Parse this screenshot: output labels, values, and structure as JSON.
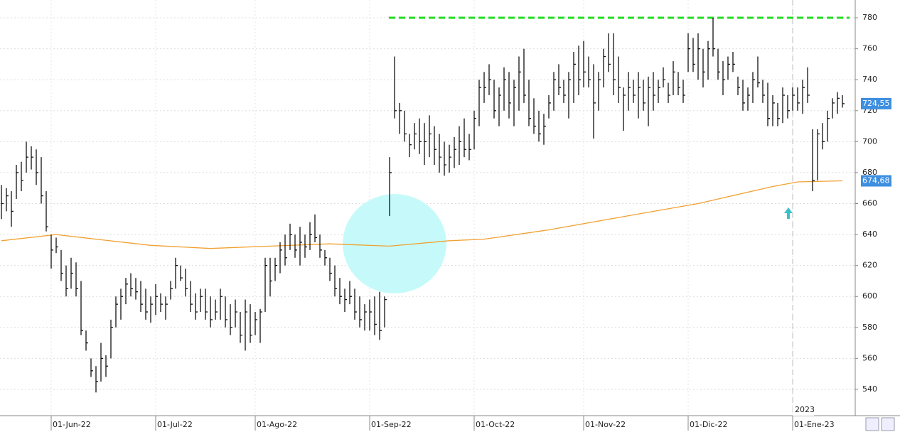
{
  "chart_data": {
    "type": "ohlc",
    "categories": [
      null,
      null,
      null,
      null,
      null,
      null,
      null,
      null,
      null,
      null,
      "01-Jun-22",
      null,
      null,
      null,
      null,
      null,
      null,
      null,
      null,
      null,
      null,
      null,
      null,
      null,
      null,
      null,
      null,
      null,
      null,
      null,
      null,
      "01-Jul-22",
      null,
      null,
      null,
      null,
      null,
      null,
      null,
      null,
      null,
      null,
      null,
      null,
      null,
      null,
      null,
      null,
      null,
      null,
      null,
      "01-Ago-22",
      null,
      null,
      null,
      null,
      null,
      null,
      null,
      null,
      null,
      null,
      null,
      null,
      null,
      null,
      null,
      null,
      null,
      null,
      null,
      null,
      null,
      null,
      "01-Sep-22",
      null,
      null,
      null,
      null,
      null,
      null,
      null,
      null,
      null,
      null,
      null,
      null,
      null,
      null,
      null,
      null,
      null,
      null,
      null,
      null,
      "01-Oct-22",
      null,
      null,
      null,
      null,
      null,
      null,
      null,
      null,
      null,
      null,
      null,
      null,
      null,
      null,
      null,
      null,
      null,
      null,
      null,
      null,
      null,
      "01-Nov-22",
      null,
      null,
      null,
      null,
      null,
      null,
      null,
      null,
      null,
      null,
      null,
      null,
      null,
      null,
      null,
      null,
      null,
      null,
      null,
      null,
      "01-Dic-22",
      null,
      null,
      null,
      null,
      null,
      null,
      null,
      null,
      null,
      null,
      null,
      null,
      null,
      null,
      null,
      null,
      null,
      null,
      null,
      null,
      "01-Ene-23",
      null,
      null,
      null,
      null,
      null,
      null,
      null,
      null,
      null,
      null
    ],
    "high": [
      672,
      670,
      668,
      685,
      687,
      700,
      697,
      695,
      690,
      668,
      640,
      638,
      630,
      620,
      625,
      622,
      610,
      578,
      560,
      555,
      570,
      562,
      585,
      600,
      605,
      612,
      615,
      612,
      610,
      605,
      600,
      608,
      602,
      600,
      610,
      625,
      620,
      618,
      610,
      602,
      605,
      605,
      600,
      598,
      605,
      600,
      595,
      598,
      590,
      598,
      595,
      590,
      592,
      625,
      625,
      625,
      635,
      640,
      647,
      640,
      645,
      640,
      648,
      653,
      640,
      630,
      625,
      620,
      612,
      605,
      610,
      605,
      600,
      595,
      598,
      600,
      603,
      600,
      690,
      755,
      725,
      720,
      705,
      712,
      715,
      712,
      717,
      710,
      705,
      700,
      698,
      703,
      710,
      715,
      705,
      720,
      740,
      745,
      750,
      740,
      735,
      748,
      745,
      740,
      755,
      760,
      740,
      728,
      720,
      718,
      730,
      745,
      750,
      740,
      745,
      758,
      762,
      765,
      755,
      750,
      745,
      760,
      770,
      770,
      755,
      735,
      745,
      740,
      745,
      740,
      742,
      745,
      740,
      748,
      738,
      752,
      745,
      740,
      770,
      767,
      770,
      760,
      765,
      780,
      760,
      752,
      755,
      758,
      742,
      740,
      735,
      745,
      755,
      740,
      738,
      730,
      725,
      735,
      730,
      735,
      735,
      740,
      748,
      708,
      708,
      712,
      720,
      728,
      732,
      730
    ],
    "low": [
      650,
      655,
      645,
      663,
      668,
      680,
      682,
      672,
      660,
      642,
      618,
      628,
      610,
      600,
      605,
      600,
      575,
      565,
      548,
      538,
      545,
      548,
      560,
      580,
      585,
      595,
      600,
      598,
      590,
      585,
      583,
      588,
      590,
      585,
      598,
      605,
      610,
      600,
      590,
      585,
      590,
      585,
      580,
      585,
      585,
      580,
      575,
      580,
      570,
      565,
      570,
      575,
      570,
      590,
      600,
      610,
      615,
      620,
      630,
      625,
      620,
      625,
      630,
      635,
      625,
      620,
      610,
      600,
      595,
      590,
      595,
      585,
      580,
      578,
      578,
      575,
      572,
      580,
      652,
      715,
      705,
      700,
      690,
      695,
      692,
      685,
      690,
      685,
      680,
      678,
      680,
      683,
      685,
      690,
      688,
      695,
      710,
      725,
      730,
      715,
      710,
      720,
      715,
      710,
      720,
      725,
      710,
      705,
      700,
      698,
      715,
      720,
      730,
      725,
      715,
      725,
      730,
      735,
      735,
      702,
      720,
      735,
      745,
      730,
      725,
      707,
      720,
      725,
      715,
      720,
      710,
      720,
      725,
      735,
      725,
      730,
      730,
      725,
      745,
      745,
      740,
      735,
      740,
      755,
      740,
      730,
      740,
      745,
      730,
      720,
      720,
      725,
      735,
      725,
      710,
      710,
      710,
      712,
      715,
      720,
      720,
      718,
      725,
      668,
      675,
      695,
      700,
      715,
      718,
      722
    ],
    "close": [
      660,
      665,
      655,
      680,
      675,
      690,
      690,
      680,
      665,
      645,
      630,
      632,
      615,
      605,
      615,
      605,
      578,
      570,
      552,
      545,
      560,
      555,
      580,
      595,
      600,
      608,
      605,
      603,
      595,
      590,
      595,
      600,
      595,
      595,
      605,
      620,
      612,
      605,
      595,
      590,
      600,
      590,
      585,
      590,
      600,
      585,
      580,
      590,
      575,
      590,
      575,
      585,
      590,
      620,
      610,
      620,
      630,
      625,
      640,
      630,
      635,
      632,
      640,
      638,
      630,
      625,
      615,
      605,
      600,
      598,
      600,
      590,
      585,
      590,
      590,
      582,
      578,
      598,
      680,
      720,
      720,
      705,
      698,
      705,
      700,
      700,
      705,
      695,
      690,
      685,
      690,
      695,
      700,
      695,
      695,
      715,
      735,
      735,
      740,
      720,
      730,
      740,
      725,
      735,
      745,
      730,
      715,
      710,
      705,
      710,
      725,
      740,
      735,
      730,
      740,
      750,
      740,
      745,
      740,
      725,
      740,
      755,
      750,
      740,
      735,
      730,
      735,
      730,
      735,
      725,
      735,
      730,
      735,
      740,
      730,
      745,
      735,
      730,
      760,
      750,
      760,
      745,
      760,
      760,
      745,
      740,
      750,
      750,
      735,
      725,
      730,
      740,
      738,
      730,
      715,
      725,
      715,
      730,
      720,
      730,
      725,
      735,
      730,
      675,
      705,
      700,
      715,
      725,
      728,
      724.55
    ],
    "color": "#111111",
    "moving_average": {
      "x": [
        0,
        11,
        19,
        30,
        42,
        54,
        66,
        78,
        90,
        97,
        110,
        124,
        140,
        155,
        160,
        169
      ],
      "values": [
        636,
        640,
        637,
        633,
        631,
        632.5,
        634,
        632.5,
        636,
        637,
        643,
        651,
        660,
        671,
        674,
        674.68
      ],
      "color": "#f0a030"
    },
    "level": {
      "value": 780,
      "color": "#22dd22"
    },
    "last_price": {
      "value": 724.55,
      "label": "724,55"
    },
    "ma_last": {
      "value": 674.68,
      "label": "674,68"
    },
    "year_label": "2023",
    "ylim": [
      523,
      791.5
    ],
    "yticks": [
      540,
      560,
      580,
      600,
      620,
      640,
      660,
      680,
      700,
      720,
      740,
      760,
      780
    ],
    "grid": true
  }
}
